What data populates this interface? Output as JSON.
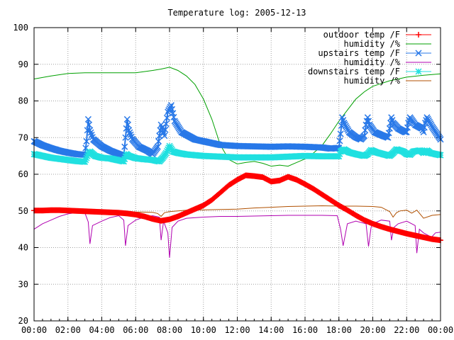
{
  "chart_data": {
    "type": "line",
    "title": "Temperature log: 2005-12-13",
    "xlabel": "",
    "ylabel": "",
    "x_tick_labels": [
      "00:00",
      "02:00",
      "04:00",
      "06:00",
      "08:00",
      "10:00",
      "12:00",
      "14:00",
      "16:00",
      "18:00",
      "20:00",
      "22:00",
      "00:00"
    ],
    "y_tick_labels": [
      "20",
      "30",
      "40",
      "50",
      "60",
      "70",
      "80",
      "90",
      "100"
    ],
    "xlim_hours": [
      0,
      24
    ],
    "ylim": [
      20,
      100
    ],
    "grid": true,
    "legend_position": "top-right",
    "series": [
      {
        "name": "outdoor temp /F",
        "color": "#ff0000",
        "marker": "plus",
        "x": [
          0,
          0.5,
          1,
          1.5,
          2,
          2.5,
          3,
          3.5,
          4,
          4.5,
          5,
          5.5,
          6,
          6.5,
          7,
          7.5,
          8,
          8.5,
          9,
          9.5,
          10,
          10.5,
          11,
          11.5,
          12,
          12.5,
          13,
          13.5,
          14,
          14.5,
          15,
          15.5,
          16,
          16.5,
          17,
          17.5,
          18,
          18.5,
          19,
          19.5,
          20,
          20.5,
          21,
          21.5,
          22,
          22.5,
          23,
          23.5,
          24
        ],
        "values": [
          50.1,
          50.1,
          50.2,
          50.2,
          50.1,
          50.0,
          49.9,
          49.8,
          49.7,
          49.6,
          49.5,
          49.3,
          49.0,
          48.5,
          47.8,
          47.3,
          47.7,
          48.5,
          49.5,
          50.5,
          51.5,
          53.0,
          55.0,
          57.0,
          58.5,
          59.7,
          59.5,
          59.2,
          58.0,
          58.3,
          59.3,
          58.5,
          57.3,
          56.0,
          54.5,
          53.0,
          51.5,
          50.2,
          48.8,
          47.5,
          46.5,
          45.7,
          45.0,
          44.4,
          43.8,
          43.3,
          42.8,
          42.3,
          42.0
        ]
      },
      {
        "name": "humidity /%",
        "color": "#00a000",
        "marker": "none",
        "x": [
          0,
          1,
          2,
          3,
          4,
          5,
          6,
          7,
          7.5,
          8,
          8.5,
          9,
          9.5,
          10,
          10.5,
          11,
          11.5,
          12,
          12.5,
          13,
          13.5,
          14,
          14.5,
          15,
          15.5,
          16,
          16.5,
          17,
          17.5,
          18,
          18.5,
          19,
          19.5,
          20,
          21,
          22,
          23,
          24
        ],
        "values": [
          86,
          86.8,
          87.5,
          87.7,
          87.7,
          87.7,
          87.7,
          88.3,
          88.7,
          89.2,
          88.3,
          86.8,
          84.5,
          80.5,
          75.0,
          68.0,
          64.0,
          62.8,
          63.2,
          63.5,
          63.0,
          62.2,
          62.5,
          62.2,
          63.2,
          64.2,
          65.8,
          67.8,
          71.0,
          74.5,
          77.5,
          80.5,
          82.5,
          84.0,
          85.5,
          86.5,
          87.0,
          87.4
        ]
      },
      {
        "name": "upstairs temp /F",
        "color": "#2878e8",
        "marker": "cross",
        "x": [
          0,
          0.5,
          1,
          1.5,
          2,
          2.5,
          3,
          3.1,
          3.2,
          3.3,
          3.5,
          4,
          4.5,
          5,
          5.3,
          5.4,
          5.5,
          5.6,
          5.8,
          6.2,
          6.7,
          7,
          7.3,
          7.5,
          7.7,
          7.9,
          8.1,
          8.3,
          8.7,
          9.5,
          10.5,
          11,
          12,
          13,
          14,
          15,
          16,
          17,
          17.5,
          18,
          18.1,
          18.2,
          18.3,
          18.6,
          19,
          19.3,
          19.5,
          19.6,
          19.7,
          19.8,
          20.1,
          20.6,
          20.9,
          21,
          21.1,
          21.2,
          21.5,
          21.9,
          22,
          22.1,
          22.2,
          22.5,
          22.9,
          23,
          23.1,
          23.2,
          23.5,
          24
        ],
        "values": [
          69,
          67.9,
          67.1,
          66.4,
          65.9,
          65.5,
          65.3,
          69,
          75,
          72,
          69.5,
          67.6,
          66.4,
          65.5,
          65,
          70,
          75,
          72,
          69.6,
          67.5,
          66.4,
          65.5,
          67.5,
          73.5,
          70.5,
          77,
          78.8,
          74.5,
          71.5,
          69.5,
          68.5,
          68,
          67.7,
          67.6,
          67.5,
          67.6,
          67.5,
          67.3,
          67,
          67.2,
          71,
          75.5,
          74,
          71.5,
          70.1,
          69.5,
          70.5,
          73.5,
          75.5,
          73.5,
          71.5,
          70.5,
          70,
          72.5,
          75.5,
          74,
          72.5,
          71.5,
          71.5,
          74,
          75.5,
          73.5,
          72.5,
          71.5,
          74,
          75.5,
          73,
          69.5
        ]
      },
      {
        "name": "humidity /%",
        "color": "#b000b0",
        "marker": "none",
        "x": [
          0,
          0.5,
          1,
          1.5,
          2,
          2.5,
          3,
          3.2,
          3.3,
          3.45,
          4,
          4.5,
          5,
          5.3,
          5.4,
          5.55,
          6,
          6.5,
          7,
          7.4,
          7.5,
          7.65,
          7.9,
          8.0,
          8.15,
          8.5,
          9,
          10,
          11,
          12,
          13,
          14,
          15,
          16,
          17,
          17.9,
          18.1,
          18.25,
          18.5,
          19,
          19.6,
          19.75,
          19.9,
          20,
          20.5,
          21,
          21.1,
          21.25,
          21.5,
          22,
          22.5,
          22.6,
          22.75,
          23,
          23.4,
          23.5,
          23.7,
          24
        ],
        "values": [
          45,
          46.5,
          47.5,
          48.5,
          49.2,
          49.5,
          49.5,
          47,
          41,
          46,
          47.2,
          48.2,
          48.7,
          47.5,
          40.5,
          46,
          47.5,
          48.3,
          48.7,
          48.3,
          42,
          47.2,
          44,
          37.2,
          45.5,
          47.2,
          48,
          48.3,
          48.5,
          48.5,
          48.6,
          48.7,
          48.8,
          48.8,
          48.8,
          48.7,
          45,
          40.5,
          46.5,
          47.2,
          46.5,
          40.3,
          45.5,
          46.5,
          47.5,
          47.2,
          42,
          45.5,
          46.5,
          47.2,
          46,
          38.5,
          45,
          44,
          43,
          43,
          44,
          44.2
        ]
      },
      {
        "name": "downstairs temp /F",
        "color": "#20e0e0",
        "marker": "star",
        "x": [
          0,
          0.5,
          1,
          1.5,
          2,
          2.5,
          3,
          3.2,
          3.3,
          3.6,
          4,
          4.5,
          5,
          5.3,
          5.45,
          5.6,
          6,
          6.5,
          7,
          7.4,
          7.6,
          7.8,
          8,
          8.2,
          8.5,
          9,
          9.5,
          10,
          11,
          12,
          13,
          14,
          15,
          16,
          17,
          18,
          18.1,
          18.3,
          18.6,
          19,
          19.5,
          19.7,
          19.9,
          20.2,
          20.6,
          21,
          21.2,
          21.4,
          21.8,
          22,
          22.2,
          22.4,
          22.8,
          23,
          23.2,
          23.4,
          23.8,
          24
        ],
        "values": [
          65.5,
          65,
          64.5,
          64.2,
          63.9,
          63.6,
          63.4,
          65.5,
          66.2,
          65,
          64.5,
          64.3,
          63.8,
          63.5,
          65.5,
          65,
          64.4,
          64.1,
          63.9,
          63.5,
          64.5,
          65.8,
          67.7,
          66.2,
          65.8,
          65.4,
          65.2,
          65,
          64.8,
          64.6,
          64.6,
          64.6,
          64.8,
          65,
          64.9,
          64.9,
          66.2,
          66.8,
          66,
          65.5,
          65,
          65.5,
          66.6,
          66,
          65.5,
          65,
          65.8,
          66.8,
          66.2,
          65.5,
          65.3,
          66.2,
          66.5,
          65.8,
          66.5,
          65.8,
          65.4,
          65.2
        ]
      },
      {
        "name": "humidity /%",
        "color": "#b05000",
        "marker": "none",
        "x": [
          0,
          1,
          2,
          3,
          4,
          5,
          6,
          7,
          7.3,
          7.5,
          7.7,
          8,
          8.5,
          9,
          10,
          11,
          12,
          13,
          14,
          15,
          16,
          17,
          18,
          19,
          20,
          20.5,
          21,
          21.2,
          21.4,
          21.6,
          22,
          22.3,
          22.6,
          23,
          23.5,
          24
        ],
        "values": [
          49.5,
          50.2,
          50.6,
          50.5,
          50.3,
          50.0,
          49.7,
          49.6,
          49.3,
          48.5,
          49.5,
          49.8,
          50.0,
          50.2,
          50.3,
          50.4,
          50.5,
          50.8,
          51.0,
          51.2,
          51.3,
          51.4,
          51.3,
          51.3,
          51.2,
          51.0,
          49.8,
          48.3,
          49.5,
          50.0,
          50.2,
          49.4,
          50.2,
          48.0,
          48.8,
          49.0
        ]
      }
    ]
  }
}
